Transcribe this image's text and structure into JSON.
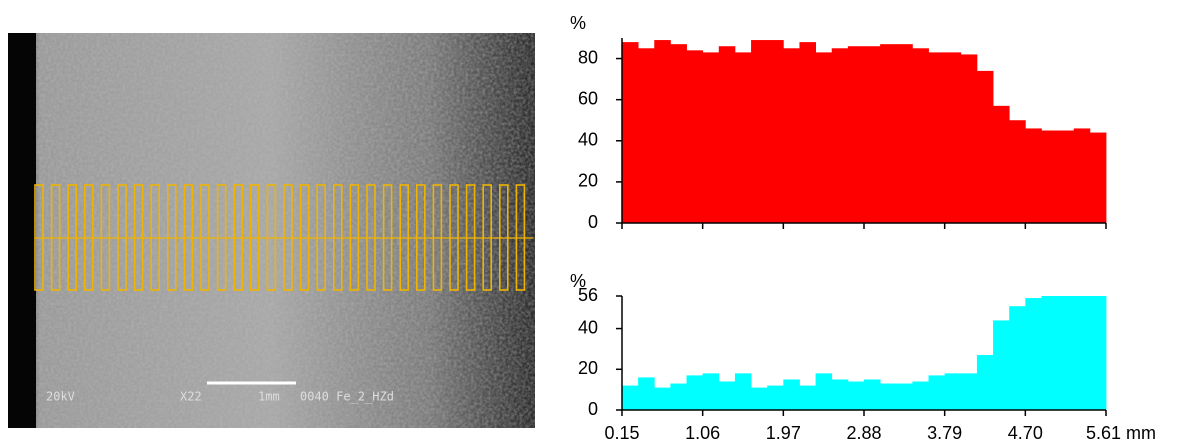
{
  "image": {
    "labels": [
      "20kV",
      "X22",
      "1mm",
      "0040 Fe_2_HZd"
    ]
  },
  "chart_data": [
    {
      "type": "histogram",
      "y_label": "%",
      "color": "#ff0000",
      "bins": [
        0.15,
        0.332,
        0.514,
        0.696,
        0.878,
        1.06,
        1.242,
        1.424,
        1.606,
        1.788,
        1.97,
        2.152,
        2.334,
        2.516,
        2.698,
        2.88,
        3.062,
        3.244,
        3.426,
        3.608,
        3.79,
        3.972,
        4.154,
        4.336,
        4.518,
        4.7,
        4.882,
        5.064,
        5.246,
        5.428,
        5.61
      ],
      "values": [
        88,
        85,
        89,
        87,
        84,
        83,
        86,
        83,
        89,
        89,
        85,
        88,
        83,
        85,
        86,
        86,
        87,
        87,
        85,
        83,
        83,
        82,
        74,
        57,
        50,
        46,
        45,
        45,
        46,
        44
      ],
      "xlim": [
        0.15,
        5.61
      ],
      "xticks": [
        0.15,
        1.06,
        1.97,
        2.88,
        3.79,
        4.7,
        5.61
      ],
      "ylim": [
        0,
        90
      ],
      "yticks": [
        0,
        20,
        40,
        60,
        80
      ]
    },
    {
      "type": "histogram",
      "y_label": "%",
      "color": "#00ffff",
      "bins": [
        0.15,
        0.332,
        0.514,
        0.696,
        0.878,
        1.06,
        1.242,
        1.424,
        1.606,
        1.788,
        1.97,
        2.152,
        2.334,
        2.516,
        2.698,
        2.88,
        3.062,
        3.244,
        3.426,
        3.608,
        3.79,
        3.972,
        4.154,
        4.336,
        4.518,
        4.7,
        4.882,
        5.064,
        5.246,
        5.428,
        5.61
      ],
      "values": [
        12,
        16,
        11,
        13,
        17,
        18,
        14,
        18,
        11,
        12,
        15,
        12,
        18,
        15,
        14,
        15,
        13,
        13,
        14,
        17,
        18,
        18,
        27,
        44,
        51,
        55,
        56,
        56,
        56,
        56
      ],
      "xlim": [
        0.15,
        5.61
      ],
      "xticks": [
        0.15,
        1.06,
        1.97,
        2.88,
        3.79,
        {
          "value": 4.7,
          "label": "4.70"
        },
        {
          "value": 5.61,
          "label": "5.61 mm"
        }
      ],
      "ylim": [
        0,
        56
      ],
      "yticks": [
        0,
        20,
        40,
        56
      ]
    }
  ]
}
